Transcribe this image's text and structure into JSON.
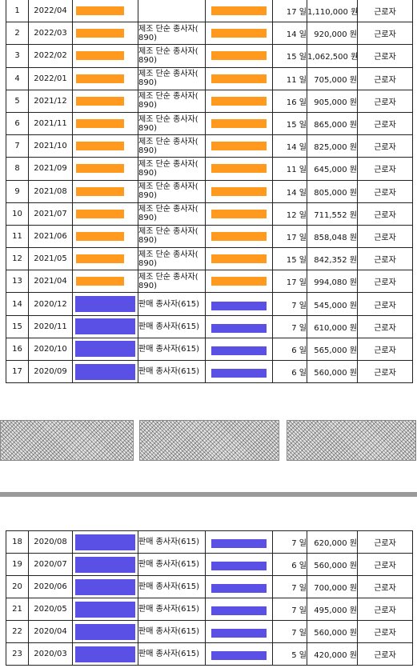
{
  "table_top": {
    "rows": [
      {
        "no": "1",
        "ym": "2022/04",
        "employer": "orange",
        "job": "",
        "days": "17 일",
        "amount": "1,110,000 원",
        "type": "근로자"
      },
      {
        "no": "2",
        "ym": "2022/03",
        "employer": "orange",
        "job": "제조 단순 종사자(\n890)",
        "days": "14 일",
        "amount": "920,000 원",
        "type": "근로자"
      },
      {
        "no": "3",
        "ym": "2022/02",
        "employer": "orange",
        "job": "제조 단순 종사자(\n890)",
        "days": "15 일",
        "amount": "1,062,500 원",
        "type": "근로자"
      },
      {
        "no": "4",
        "ym": "2022/01",
        "employer": "orange",
        "job": "제조 단순 종사자(\n890)",
        "days": "11 일",
        "amount": "705,000 원",
        "type": "근로자"
      },
      {
        "no": "5",
        "ym": "2021/12",
        "employer": "orange",
        "job": "제조 단순 종사자(\n890)",
        "days": "16 일",
        "amount": "905,000 원",
        "type": "근로자"
      },
      {
        "no": "6",
        "ym": "2021/11",
        "employer": "orange",
        "job": "제조 단순 종사자(\n890)",
        "days": "15 일",
        "amount": "865,000 원",
        "type": "근로자"
      },
      {
        "no": "7",
        "ym": "2021/10",
        "employer": "orange",
        "job": "제조 단순 종사자(\n890)",
        "days": "14 일",
        "amount": "825,000 원",
        "type": "근로자"
      },
      {
        "no": "8",
        "ym": "2021/09",
        "employer": "orange",
        "job": "제조 단순 종사자(\n890)",
        "days": "11 일",
        "amount": "645,000 원",
        "type": "근로자"
      },
      {
        "no": "9",
        "ym": "2021/08",
        "employer": "orange",
        "job": "제조 단순 종사자(\n890)",
        "days": "14 일",
        "amount": "805,000 원",
        "type": "근로자"
      },
      {
        "no": "10",
        "ym": "2021/07",
        "employer": "orange",
        "job": "제조 단순 종사자(\n890)",
        "days": "12 일",
        "amount": "711,552 원",
        "type": "근로자"
      },
      {
        "no": "11",
        "ym": "2021/06",
        "employer": "orange",
        "job": "제조 단순 종사자(\n890)",
        "days": "17 일",
        "amount": "858,048 원",
        "type": "근로자"
      },
      {
        "no": "12",
        "ym": "2021/05",
        "employer": "orange",
        "job": "제조 단순 종사자(\n890)",
        "days": "15 일",
        "amount": "842,352 원",
        "type": "근로자"
      },
      {
        "no": "13",
        "ym": "2021/04",
        "employer": "orange",
        "job": "제조 단순 종사자(\n890)",
        "days": "17 일",
        "amount": "994,080 원",
        "type": "근로자"
      },
      {
        "no": "14",
        "ym": "2020/12",
        "employer": "blue",
        "job": "판매 종사자(615)",
        "days": "7 일",
        "amount": "545,000 원",
        "type": "근로자"
      },
      {
        "no": "15",
        "ym": "2020/11",
        "employer": "blue",
        "job": "판매 종사자(615)",
        "days": "7 일",
        "amount": "610,000 원",
        "type": "근로자"
      },
      {
        "no": "16",
        "ym": "2020/10",
        "employer": "blue",
        "job": "판매 종사자(615)",
        "days": "6 일",
        "amount": "565,000 원",
        "type": "근로자"
      },
      {
        "no": "17",
        "ym": "2020/09",
        "employer": "blue",
        "job": "판매 종사자(615)",
        "days": "6 일",
        "amount": "560,000 원",
        "type": "근로자"
      }
    ]
  },
  "table_bottom": {
    "rows": [
      {
        "no": "18",
        "ym": "2020/08",
        "employer": "blue",
        "job": "판매 종사자(615)",
        "days": "7 일",
        "amount": "620,000 원",
        "type": "근로자"
      },
      {
        "no": "19",
        "ym": "2020/07",
        "employer": "blue",
        "job": "판매 종사자(615)",
        "days": "6 일",
        "amount": "560,000 원",
        "type": "근로자"
      },
      {
        "no": "20",
        "ym": "2020/06",
        "employer": "blue",
        "job": "판매 종사자(615)",
        "days": "7 일",
        "amount": "700,000 원",
        "type": "근로자"
      },
      {
        "no": "21",
        "ym": "2020/05",
        "employer": "blue",
        "job": "판매 종사자(615)",
        "days": "7 일",
        "amount": "495,000 원",
        "type": "근로자"
      },
      {
        "no": "22",
        "ym": "2020/04",
        "employer": "blue",
        "job": "판매 종사자(615)",
        "days": "7 일",
        "amount": "560,000 원",
        "type": "근로자"
      },
      {
        "no": "23",
        "ym": "2020/03",
        "employer": "blue",
        "job": "판매 종사자(615)",
        "days": "5 일",
        "amount": "420,000 원",
        "type": "근로자"
      }
    ]
  },
  "colors": {
    "redaction_orange": "#ff9a1f",
    "redaction_blue": "#5b50e6",
    "divider": "#9a9a9a"
  }
}
